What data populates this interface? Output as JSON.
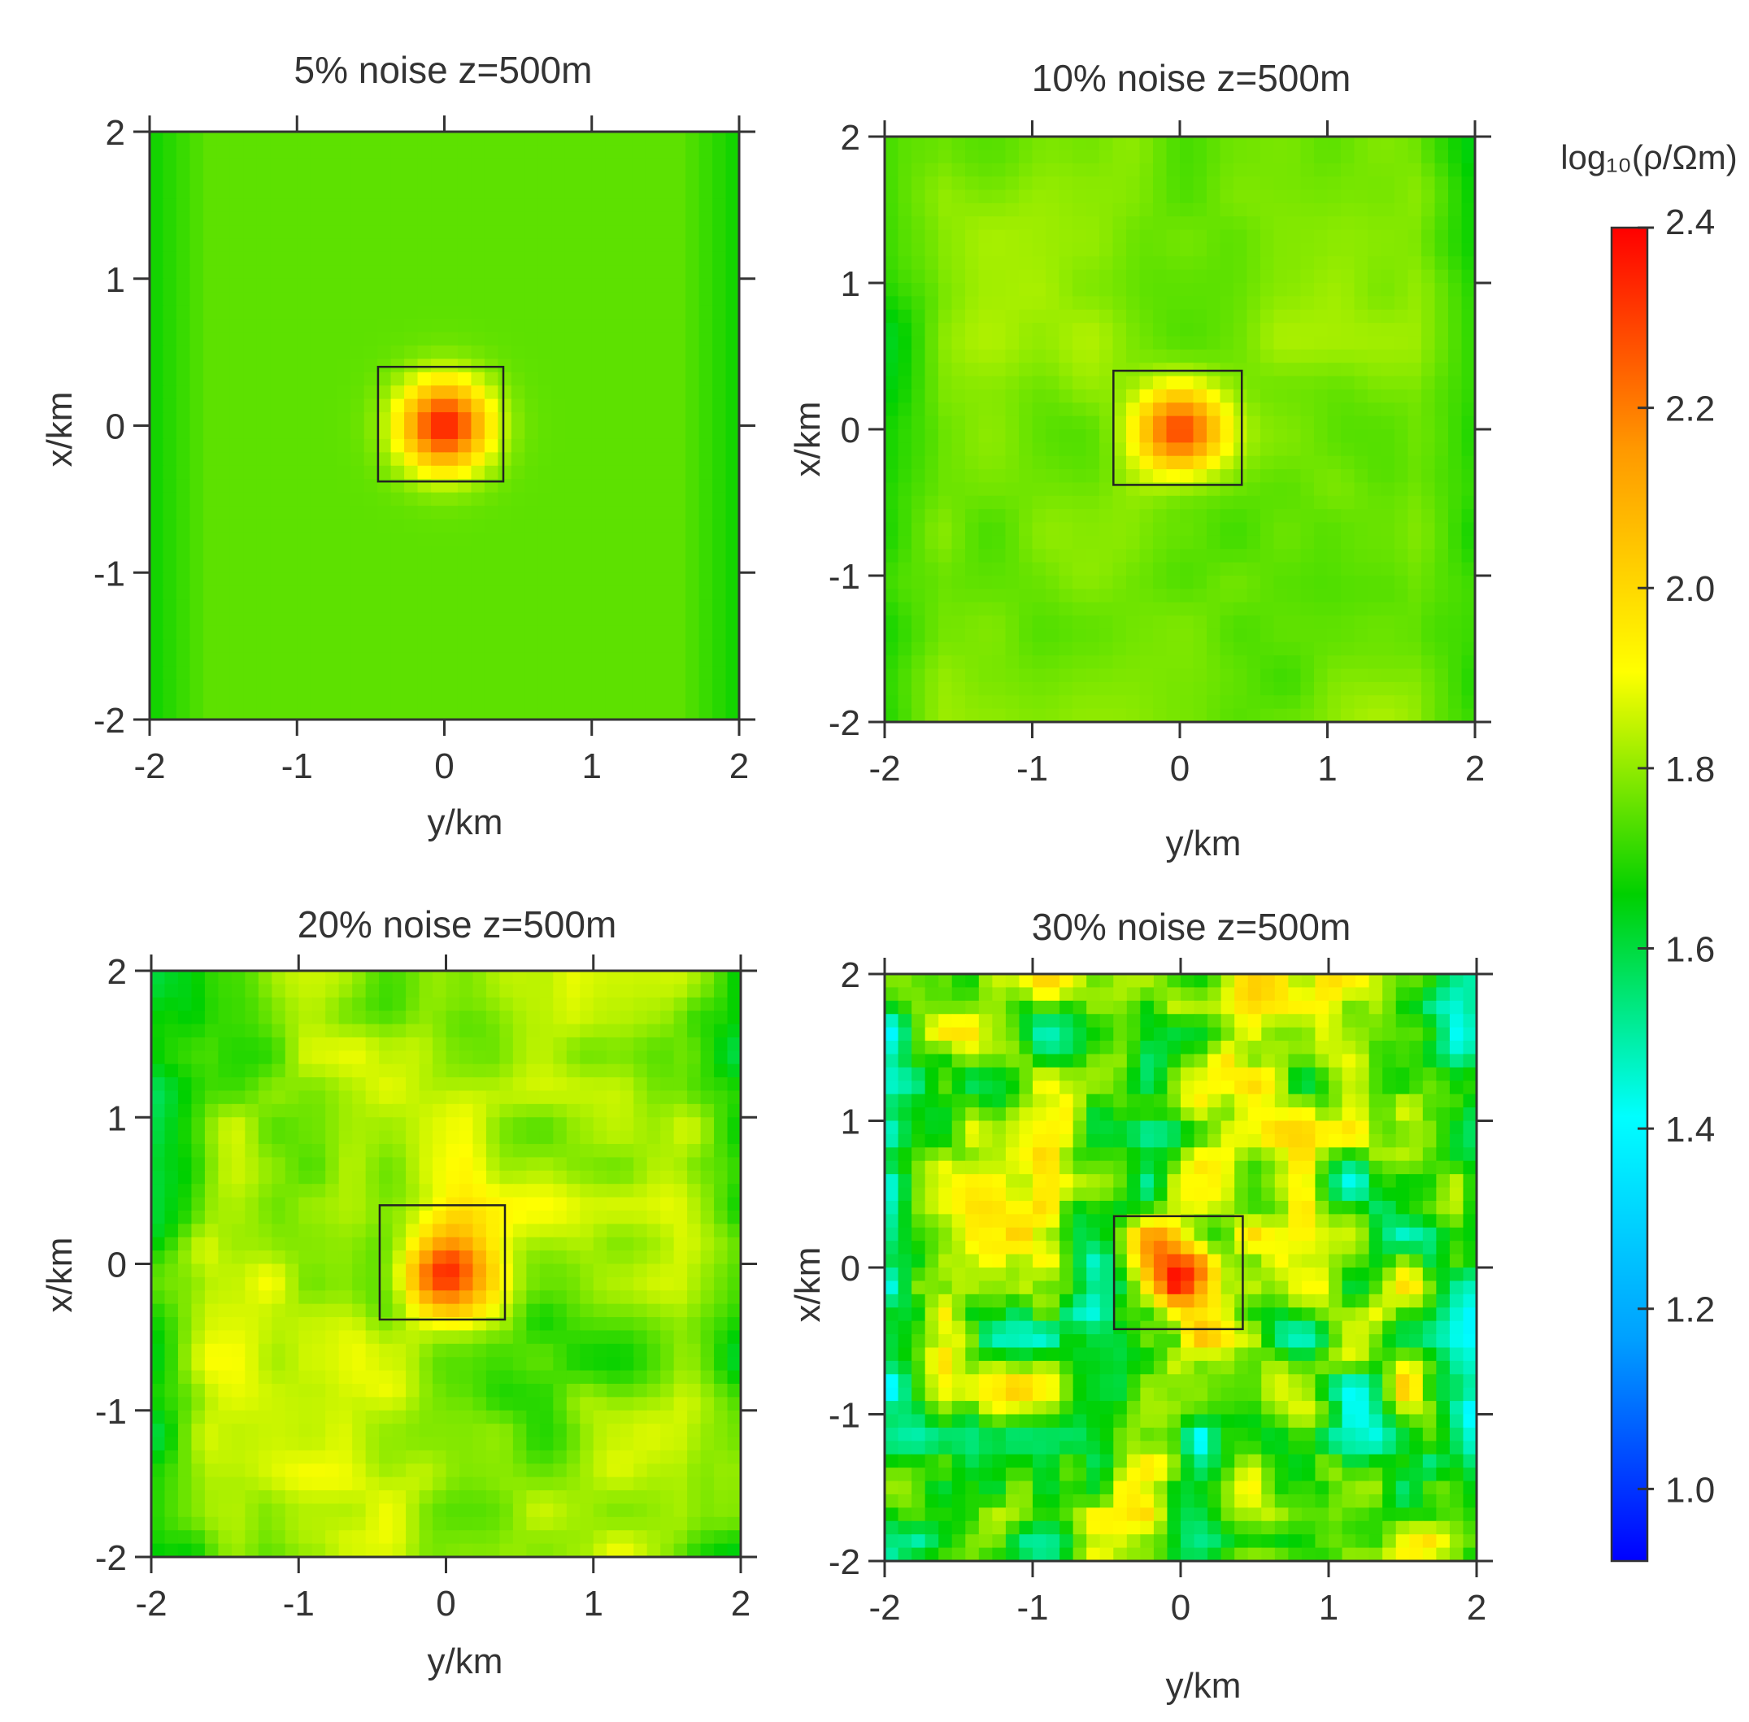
{
  "chart_data": [
    {
      "type": "heatmap",
      "title": "5% noise z=500m",
      "xlabel": "y/km",
      "ylabel": "x/km",
      "xlim": [
        -2,
        2
      ],
      "ylim": [
        -2,
        2
      ],
      "xticks": [
        "-2",
        "-1",
        "0",
        "1",
        "2"
      ],
      "yticks": [
        "2",
        "1",
        "0",
        "-1",
        "-2"
      ],
      "target_box": {
        "y": [
          -0.45,
          0.4
        ],
        "x": [
          -0.38,
          0.4
        ]
      },
      "anomaly_center": [
        0,
        0
      ],
      "anomaly_peak": 2.35,
      "background_value": 1.75,
      "noise": 0.0
    },
    {
      "type": "heatmap",
      "title": "10% noise z=500m",
      "xlabel": "y/km",
      "ylabel": "x/km",
      "xlim": [
        -2,
        2
      ],
      "ylim": [
        -2,
        2
      ],
      "xticks": [
        "-2",
        "-1",
        "0",
        "1",
        "2"
      ],
      "yticks": [
        "2",
        "1",
        "0",
        "-1",
        "-2"
      ],
      "target_box": {
        "y": [
          -0.45,
          0.42
        ],
        "x": [
          -0.38,
          0.4
        ]
      },
      "anomaly_center": [
        0,
        0
      ],
      "anomaly_peak": 2.3,
      "background_value": 1.78,
      "noise": 0.05
    },
    {
      "type": "heatmap",
      "title": "20% noise z=500m",
      "xlabel": "y/km",
      "ylabel": "x/km",
      "xlim": [
        -2,
        2
      ],
      "ylim": [
        -2,
        2
      ],
      "xticks": [
        "-2",
        "-1",
        "0",
        "1",
        "2"
      ],
      "yticks": [
        "2",
        "1",
        "0",
        "-1",
        "-2"
      ],
      "target_box": {
        "y": [
          -0.45,
          0.4
        ],
        "x": [
          -0.38,
          0.4
        ]
      },
      "anomaly_center": [
        0,
        -0.05
      ],
      "anomaly_peak": 2.3,
      "background_value": 1.8,
      "noise": 0.12
    },
    {
      "type": "heatmap",
      "title": "30% noise z=500m",
      "xlabel": "y/km",
      "ylabel": "x/km",
      "xlim": [
        -2,
        2
      ],
      "ylim": [
        -2,
        2
      ],
      "xticks": [
        "-2",
        "-1",
        "0",
        "1",
        "2"
      ],
      "yticks": [
        "2",
        "1",
        "0",
        "-1",
        "-2"
      ],
      "target_box": {
        "y": [
          -0.45,
          0.42
        ],
        "x": [
          -0.42,
          0.35
        ]
      },
      "anomaly_center": [
        -0.05,
        -0.05
      ],
      "anomaly_peak": 2.3,
      "background_value": 1.75,
      "noise": 0.28
    }
  ],
  "colorbar": {
    "label": "log₁₀(ρ/Ωm)",
    "range": [
      0.92,
      2.4
    ],
    "ticks": [
      "2.4",
      "2.2",
      "2.0",
      "1.8",
      "1.6",
      "1.4",
      "1.2",
      "1.0"
    ],
    "tick_values": [
      2.4,
      2.2,
      2.0,
      1.8,
      1.6,
      1.4,
      1.2,
      1.0
    ],
    "colormap": [
      "#0000ff",
      "#00a0ff",
      "#00ffff",
      "#00d000",
      "#ffff00",
      "#ff9900",
      "#ff0000"
    ]
  }
}
